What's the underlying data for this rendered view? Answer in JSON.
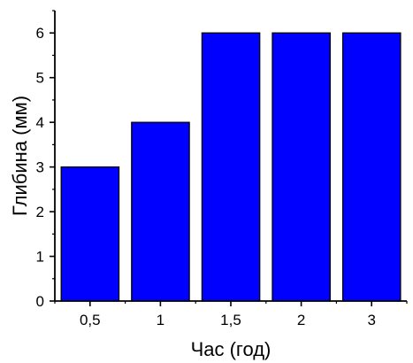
{
  "chart_data": {
    "type": "bar",
    "title": "",
    "xlabel": "Час (год)",
    "ylabel": "Глибина (мм)",
    "categories": [
      "0,5",
      "1",
      "1,5",
      "2",
      "3"
    ],
    "values": [
      3,
      4,
      6,
      6,
      6
    ],
    "ylim": [
      0,
      6.5
    ],
    "yticks": [
      "0",
      "1",
      "2",
      "3",
      "4",
      "5",
      "6"
    ],
    "grid": false,
    "legend": "none",
    "bar_color": "#0000FF",
    "bar_edge_color": "#000000"
  }
}
